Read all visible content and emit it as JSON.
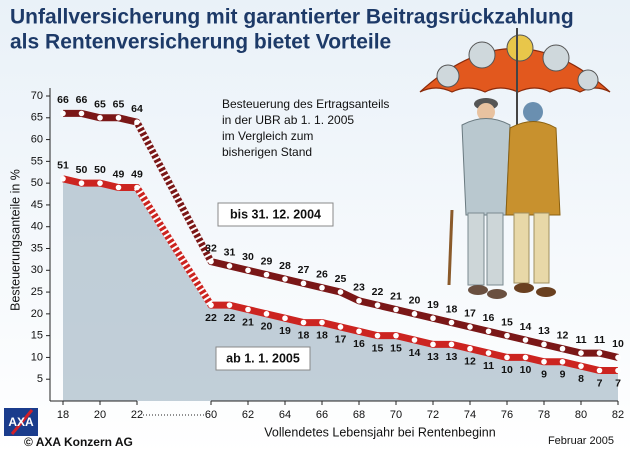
{
  "chart_data": {
    "type": "line",
    "title": [
      "Unfallversicherung mit garantierter Beitragsrückzahlung",
      "als Rentenversicherung bietet Vorteile"
    ],
    "annotation": [
      "Besteuerung des Ertragsanteils",
      "in der UBR ab 1. 1. 2005",
      "im Vergleich zum",
      "bisherigen Stand"
    ],
    "x_label": "Vollendetes Lebensjahr bei Rentenbeginn",
    "y_label": "Besteuerungsanteile in %",
    "x": [
      18,
      19,
      20,
      21,
      22,
      60,
      61,
      62,
      63,
      64,
      65,
      66,
      67,
      68,
      69,
      70,
      71,
      72,
      73,
      74,
      75,
      76,
      77,
      78,
      79,
      80,
      81,
      82
    ],
    "xticks": [
      18,
      20,
      22,
      60,
      62,
      64,
      66,
      68,
      70,
      72,
      74,
      76,
      78,
      80,
      82
    ],
    "ylim": [
      0,
      70
    ],
    "yticks": [
      5,
      10,
      15,
      20,
      25,
      30,
      35,
      40,
      45,
      50,
      55,
      60,
      65,
      70
    ],
    "series": [
      {
        "name": "bis 31. 12. 2004",
        "color": "#7a1717",
        "values": [
          66,
          66,
          65,
          65,
          64,
          32,
          31,
          30,
          29,
          28,
          27,
          26,
          25,
          23,
          22,
          21,
          20,
          19,
          18,
          17,
          16,
          15,
          14,
          13,
          12,
          11,
          11,
          10
        ]
      },
      {
        "name": "ab 1. 1. 2005",
        "color": "#cc2420",
        "values": [
          51,
          50,
          50,
          49,
          49,
          22,
          22,
          21,
          20,
          19,
          18,
          18,
          17,
          16,
          15,
          15,
          14,
          13,
          13,
          12,
          11,
          10,
          10,
          9,
          9,
          8,
          7,
          7
        ]
      }
    ],
    "area_color": "#aebfcb",
    "logo": "AXA",
    "credit": "© AXA Konzern AG",
    "date": "Februar 2005"
  }
}
